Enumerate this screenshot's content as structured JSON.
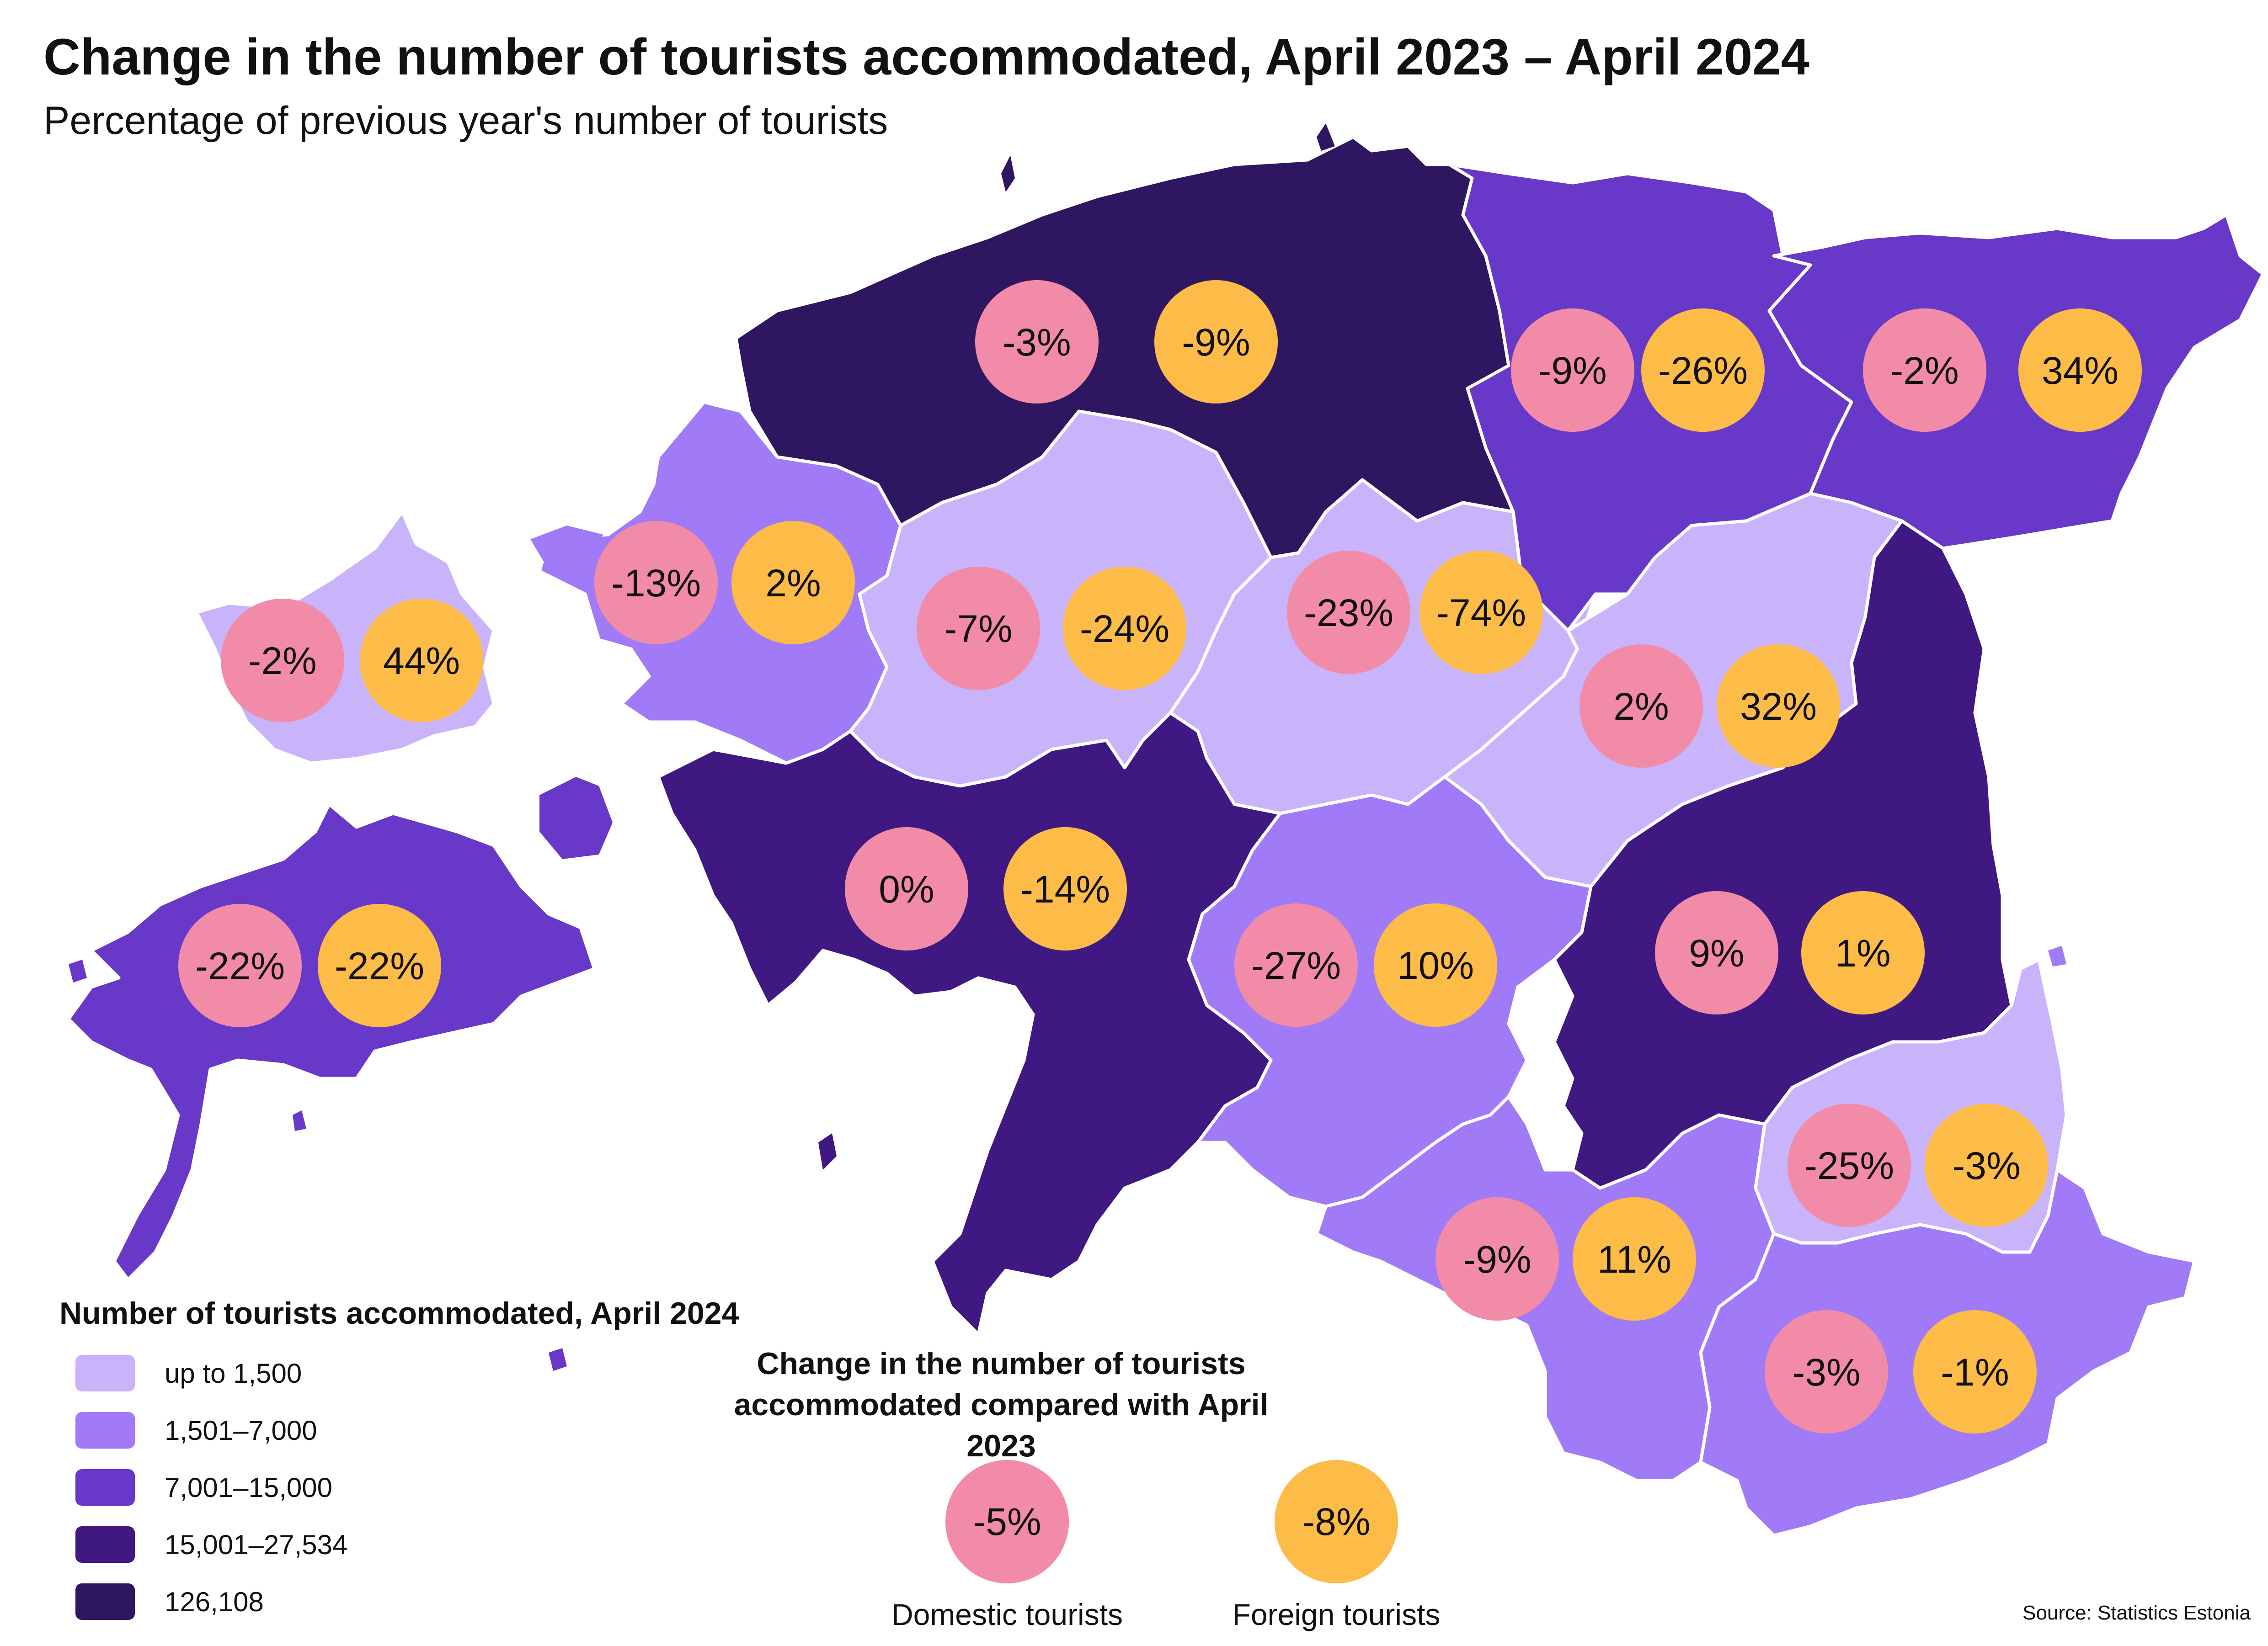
{
  "title": "Change in the number of tourists accommodated, April 2023 – April 2024",
  "subtitle": "Percentage of previous year's number of tourists",
  "colors": {
    "up_to_1500": "#c9b3fb",
    "1501_7000": "#a07af7",
    "7001_15000": "#6838c8",
    "15001_27534": "#3f1882",
    "126108": "#2e1660",
    "domestic_bubble": "#f28ba7",
    "foreign_bubble": "#fdbb48",
    "sea": "#ffffff"
  },
  "legend": {
    "title": "Number of tourists accommodated, April 2024",
    "items": [
      {
        "label": "up to 1,500",
        "color": "#c9b3fb"
      },
      {
        "label": "1,501–7,000",
        "color": "#a07af7"
      },
      {
        "label": "7,001–15,000",
        "color": "#6838c8"
      },
      {
        "label": "15,001–27,534",
        "color": "#3f1882"
      },
      {
        "label": "126,108",
        "color": "#2e1660"
      }
    ]
  },
  "change_key": {
    "title_line1": "Change in the number of tourists",
    "title_line2": "accommodated compared with April 2023",
    "domestic_value": "-5%",
    "domestic_label": "Domestic tourists",
    "foreign_value": "-8%",
    "foreign_label": "Foreign tourists"
  },
  "regions": [
    {
      "id": "harju",
      "class": "126108",
      "domestic": "-3%",
      "foreign": "-9%"
    },
    {
      "id": "laane-viru",
      "class": "7001_15000",
      "domestic": "-9%",
      "foreign": "-26%"
    },
    {
      "id": "ida-viru",
      "class": "7001_15000",
      "domestic": "-2%",
      "foreign": "34%"
    },
    {
      "id": "hiiu",
      "class": "up_to_1500",
      "domestic": "-2%",
      "foreign": "44%"
    },
    {
      "id": "laane",
      "class": "1501_7000",
      "domestic": "-13%",
      "foreign": "2%"
    },
    {
      "id": "rapla",
      "class": "up_to_1500",
      "domestic": "-7%",
      "foreign": "-24%"
    },
    {
      "id": "jarva",
      "class": "up_to_1500",
      "domestic": "-23%",
      "foreign": "-74%"
    },
    {
      "id": "jogeva",
      "class": "up_to_1500",
      "domestic": "2%",
      "foreign": "32%"
    },
    {
      "id": "saare",
      "class": "7001_15000",
      "domestic": "-22%",
      "foreign": "-22%"
    },
    {
      "id": "parnu",
      "class": "15001_27534",
      "domestic": "0%",
      "foreign": "-14%"
    },
    {
      "id": "viljandi",
      "class": "1501_7000",
      "domestic": "-27%",
      "foreign": "10%"
    },
    {
      "id": "tartu",
      "class": "15001_27534",
      "domestic": "9%",
      "foreign": "1%"
    },
    {
      "id": "polva",
      "class": "up_to_1500",
      "domestic": "-25%",
      "foreign": "-3%"
    },
    {
      "id": "valga",
      "class": "1501_7000",
      "domestic": "-9%",
      "foreign": "11%"
    },
    {
      "id": "voru",
      "class": "1501_7000",
      "domestic": "-3%",
      "foreign": "-1%"
    }
  ],
  "source": "Source: Statistics Estonia"
}
